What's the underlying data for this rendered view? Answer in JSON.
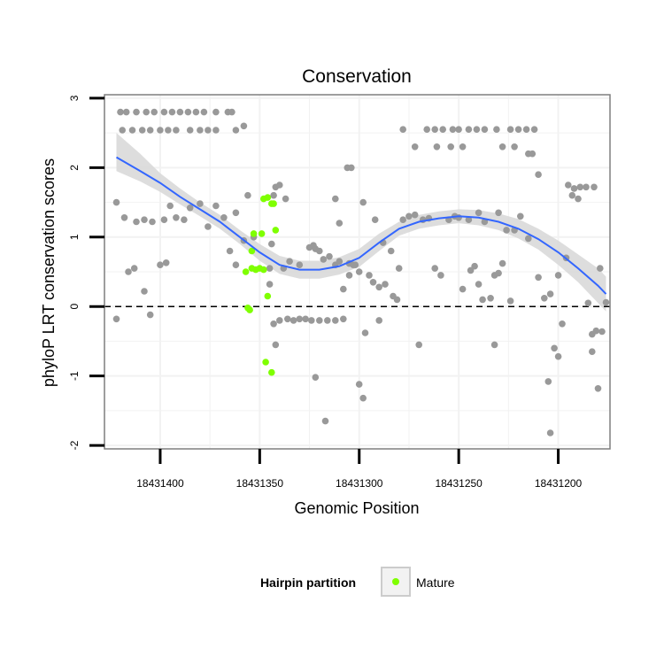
{
  "chart_data": {
    "type": "scatter",
    "title": "Conservation",
    "xlabel": "Genomic Position",
    "ylabel": "phyloP LRT conservation scores",
    "x_reversed": true,
    "xlim": [
      18431428,
      18431174
    ],
    "ylim": [
      -2.05,
      3.05
    ],
    "x_ticks": [
      18431400,
      18431350,
      18431300,
      18431250,
      18431200
    ],
    "x_tick_labels": [
      "18431400",
      "18431350",
      "18431300",
      "18431250",
      "18431200"
    ],
    "y_ticks": [
      -2,
      -1,
      0,
      1,
      2,
      3
    ],
    "y_tick_labels": [
      "-2",
      "-1",
      "0",
      "1",
      "2",
      "3"
    ],
    "reference_line": {
      "y": 0,
      "style": "dashed"
    },
    "grid": true,
    "legend": {
      "title": "Hairpin partition",
      "position": "bottom",
      "entries": [
        {
          "label": "Mature",
          "color": "#7fff00"
        }
      ]
    },
    "colors": {
      "other": "#999999",
      "mature": "#7fff00",
      "smooth": "#3366ff",
      "band": "#d9d9d9"
    },
    "series": [
      {
        "group": "other",
        "points": [
          [
            18431420,
            2.8
          ],
          [
            18431417,
            2.8
          ],
          [
            18431412,
            2.8
          ],
          [
            18431407,
            2.8
          ],
          [
            18431403,
            2.8
          ],
          [
            18431398,
            2.8
          ],
          [
            18431394,
            2.8
          ],
          [
            18431390,
            2.8
          ],
          [
            18431386,
            2.8
          ],
          [
            18431382,
            2.8
          ],
          [
            18431378,
            2.8
          ],
          [
            18431372,
            2.8
          ],
          [
            18431366,
            2.8
          ],
          [
            18431364,
            2.8
          ],
          [
            18431419,
            2.54
          ],
          [
            18431414,
            2.54
          ],
          [
            18431409,
            2.54
          ],
          [
            18431405,
            2.54
          ],
          [
            18431400,
            2.54
          ],
          [
            18431396,
            2.54
          ],
          [
            18431392,
            2.54
          ],
          [
            18431385,
            2.54
          ],
          [
            18431380,
            2.54
          ],
          [
            18431376,
            2.54
          ],
          [
            18431372,
            2.54
          ],
          [
            18431362,
            2.54
          ],
          [
            18431358,
            2.6
          ],
          [
            18431422,
            1.5
          ],
          [
            18431418,
            1.28
          ],
          [
            18431412,
            1.22
          ],
          [
            18431408,
            1.25
          ],
          [
            18431404,
            1.22
          ],
          [
            18431398,
            1.25
          ],
          [
            18431395,
            1.45
          ],
          [
            18431392,
            1.28
          ],
          [
            18431388,
            1.25
          ],
          [
            18431385,
            1.42
          ],
          [
            18431380,
            1.48
          ],
          [
            18431376,
            1.15
          ],
          [
            18431372,
            1.45
          ],
          [
            18431368,
            1.28
          ],
          [
            18431362,
            1.35
          ],
          [
            18431356,
            1.6
          ],
          [
            18431353,
            1.0
          ],
          [
            18431365,
            0.8
          ],
          [
            18431362,
            0.6
          ],
          [
            18431358,
            0.95
          ],
          [
            18431338,
            0.55
          ],
          [
            18431335,
            0.65
          ],
          [
            18431330,
            0.6
          ],
          [
            18431416,
            0.5
          ],
          [
            18431413,
            0.55
          ],
          [
            18431400,
            0.6
          ],
          [
            18431397,
            0.63
          ],
          [
            18431408,
            0.22
          ],
          [
            18431405,
            -0.12
          ],
          [
            18431422,
            -0.18
          ],
          [
            18431345,
            0.55
          ],
          [
            18431344,
            0.9
          ],
          [
            18431343,
            1.6
          ],
          [
            18431342,
            1.72
          ],
          [
            18431340,
            1.75
          ],
          [
            18431337,
            1.55
          ],
          [
            18431345,
            0.32
          ],
          [
            18431343,
            -0.25
          ],
          [
            18431340,
            -0.2
          ],
          [
            18431336,
            -0.18
          ],
          [
            18431333,
            -0.2
          ],
          [
            18431330,
            -0.18
          ],
          [
            18431342,
            -0.55
          ],
          [
            18431325,
            0.85
          ],
          [
            18431323,
            0.88
          ],
          [
            18431322,
            0.83
          ],
          [
            18431320,
            0.8
          ],
          [
            18431318,
            0.68
          ],
          [
            18431315,
            0.72
          ],
          [
            18431312,
            0.6
          ],
          [
            18431310,
            0.65
          ],
          [
            18431305,
            0.62
          ],
          [
            18431303,
            0.6
          ],
          [
            18431300,
            0.5
          ],
          [
            18431295,
            0.45
          ],
          [
            18431293,
            0.35
          ],
          [
            18431290,
            0.28
          ],
          [
            18431287,
            0.32
          ],
          [
            18431283,
            0.15
          ],
          [
            18431281,
            0.1
          ],
          [
            18431327,
            -0.18
          ],
          [
            18431324,
            -0.2
          ],
          [
            18431320,
            -0.2
          ],
          [
            18431316,
            -0.2
          ],
          [
            18431312,
            -0.2
          ],
          [
            18431308,
            -0.18
          ],
          [
            18431297,
            -0.38
          ],
          [
            18431290,
            -0.2
          ],
          [
            18431312,
            1.55
          ],
          [
            18431310,
            1.2
          ],
          [
            18431306,
            2.0
          ],
          [
            18431304,
            2.0
          ],
          [
            18431298,
            1.5
          ],
          [
            18431308,
            0.25
          ],
          [
            18431305,
            0.45
          ],
          [
            18431302,
            0.6
          ],
          [
            18431322,
            -1.02
          ],
          [
            18431317,
            -1.65
          ],
          [
            18431300,
            -1.12
          ],
          [
            18431298,
            -1.32
          ],
          [
            18431292,
            1.25
          ],
          [
            18431288,
            0.92
          ],
          [
            18431284,
            0.8
          ],
          [
            18431280,
            0.55
          ],
          [
            18431278,
            1.25
          ],
          [
            18431275,
            1.3
          ],
          [
            18431272,
            1.32
          ],
          [
            18431268,
            1.25
          ],
          [
            18431265,
            1.27
          ],
          [
            18431262,
            0.55
          ],
          [
            18431259,
            0.45
          ],
          [
            18431255,
            1.25
          ],
          [
            18431252,
            1.3
          ],
          [
            18431270,
            -0.55
          ],
          [
            18431278,
            2.55
          ],
          [
            18431272,
            2.3
          ],
          [
            18431266,
            2.55
          ],
          [
            18431262,
            2.55
          ],
          [
            18431258,
            2.55
          ],
          [
            18431253,
            2.55
          ],
          [
            18431250,
            2.55
          ],
          [
            18431245,
            2.55
          ],
          [
            18431241,
            2.55
          ],
          [
            18431237,
            2.55
          ],
          [
            18431231,
            2.55
          ],
          [
            18431224,
            2.55
          ],
          [
            18431220,
            2.55
          ],
          [
            18431216,
            2.55
          ],
          [
            18431212,
            2.55
          ],
          [
            18431261,
            2.3
          ],
          [
            18431254,
            2.3
          ],
          [
            18431248,
            2.3
          ],
          [
            18431228,
            2.3
          ],
          [
            18431222,
            2.3
          ],
          [
            18431215,
            2.2
          ],
          [
            18431213,
            2.2
          ],
          [
            18431210,
            1.9
          ],
          [
            18431250,
            1.28
          ],
          [
            18431245,
            1.25
          ],
          [
            18431240,
            1.35
          ],
          [
            18431237,
            1.22
          ],
          [
            18431230,
            1.35
          ],
          [
            18431226,
            1.1
          ],
          [
            18431222,
            1.1
          ],
          [
            18431219,
            1.3
          ],
          [
            18431215,
            0.98
          ],
          [
            18431210,
            0.42
          ],
          [
            18431207,
            0.12
          ],
          [
            18431204,
            0.18
          ],
          [
            18431200,
            0.45
          ],
          [
            18431196,
            0.7
          ],
          [
            18431195,
            1.75
          ],
          [
            18431192,
            1.7
          ],
          [
            18431189,
            1.72
          ],
          [
            18431186,
            1.72
          ],
          [
            18431182,
            1.72
          ],
          [
            18431193,
            1.6
          ],
          [
            18431190,
            1.55
          ],
          [
            18431248,
            0.25
          ],
          [
            18431244,
            0.52
          ],
          [
            18431242,
            0.58
          ],
          [
            18431240,
            0.32
          ],
          [
            18431238,
            0.1
          ],
          [
            18431234,
            0.12
          ],
          [
            18431232,
            0.45
          ],
          [
            18431230,
            0.48
          ],
          [
            18431228,
            0.62
          ],
          [
            18431224,
            0.08
          ],
          [
            18431232,
            -0.55
          ],
          [
            18431198,
            -0.25
          ],
          [
            18431200,
            -0.72
          ],
          [
            18431202,
            -0.6
          ],
          [
            18431205,
            -1.08
          ],
          [
            18431204,
            -1.82
          ],
          [
            18431185,
            0.05
          ],
          [
            18431183,
            -0.4
          ],
          [
            18431181,
            -0.35
          ],
          [
            18431178,
            -0.36
          ],
          [
            18431183,
            -0.65
          ],
          [
            18431179,
            0.55
          ],
          [
            18431180,
            -1.18
          ],
          [
            18431176,
            0.06
          ]
        ]
      },
      {
        "group": "Mature",
        "points": [
          [
            18431348,
            1.55
          ],
          [
            18431346,
            1.57
          ],
          [
            18431344,
            1.48
          ],
          [
            18431343,
            1.48
          ],
          [
            18431342,
            1.1
          ],
          [
            18431353,
            1.05
          ],
          [
            18431349,
            1.05
          ],
          [
            18431354,
            0.8
          ],
          [
            18431354,
            0.55
          ],
          [
            18431352,
            0.53
          ],
          [
            18431350,
            0.55
          ],
          [
            18431348,
            0.53
          ],
          [
            18431357,
            0.5
          ],
          [
            18431346,
            0.15
          ],
          [
            18431356,
            -0.02
          ],
          [
            18431355,
            -0.05
          ],
          [
            18431347,
            -0.8
          ],
          [
            18431344,
            -0.95
          ]
        ]
      }
    ],
    "smooth_line": {
      "x": [
        18431422,
        18431410,
        18431400,
        18431390,
        18431380,
        18431370,
        18431360,
        18431350,
        18431340,
        18431330,
        18431320,
        18431310,
        18431300,
        18431290,
        18431280,
        18431270,
        18431260,
        18431250,
        18431240,
        18431230,
        18431220,
        18431210,
        18431200,
        18431190,
        18431180,
        18431176
      ],
      "y": [
        2.15,
        1.95,
        1.78,
        1.58,
        1.4,
        1.22,
        1.0,
        0.78,
        0.6,
        0.53,
        0.53,
        0.58,
        0.7,
        0.92,
        1.12,
        1.22,
        1.27,
        1.3,
        1.28,
        1.22,
        1.12,
        0.97,
        0.78,
        0.55,
        0.3,
        0.18
      ]
    },
    "confidence_band": {
      "lower": [
        1.95,
        1.8,
        1.65,
        1.47,
        1.3,
        1.12,
        0.9,
        0.66,
        0.47,
        0.4,
        0.4,
        0.46,
        0.57,
        0.8,
        1.02,
        1.12,
        1.17,
        1.2,
        1.17,
        1.1,
        0.98,
        0.82,
        0.6,
        0.35,
        0.05,
        -0.07
      ],
      "upper": [
        2.5,
        2.2,
        1.92,
        1.7,
        1.5,
        1.32,
        1.1,
        0.9,
        0.73,
        0.66,
        0.66,
        0.71,
        0.83,
        1.05,
        1.22,
        1.32,
        1.37,
        1.4,
        1.39,
        1.34,
        1.26,
        1.12,
        0.95,
        0.75,
        0.55,
        0.43
      ]
    }
  }
}
